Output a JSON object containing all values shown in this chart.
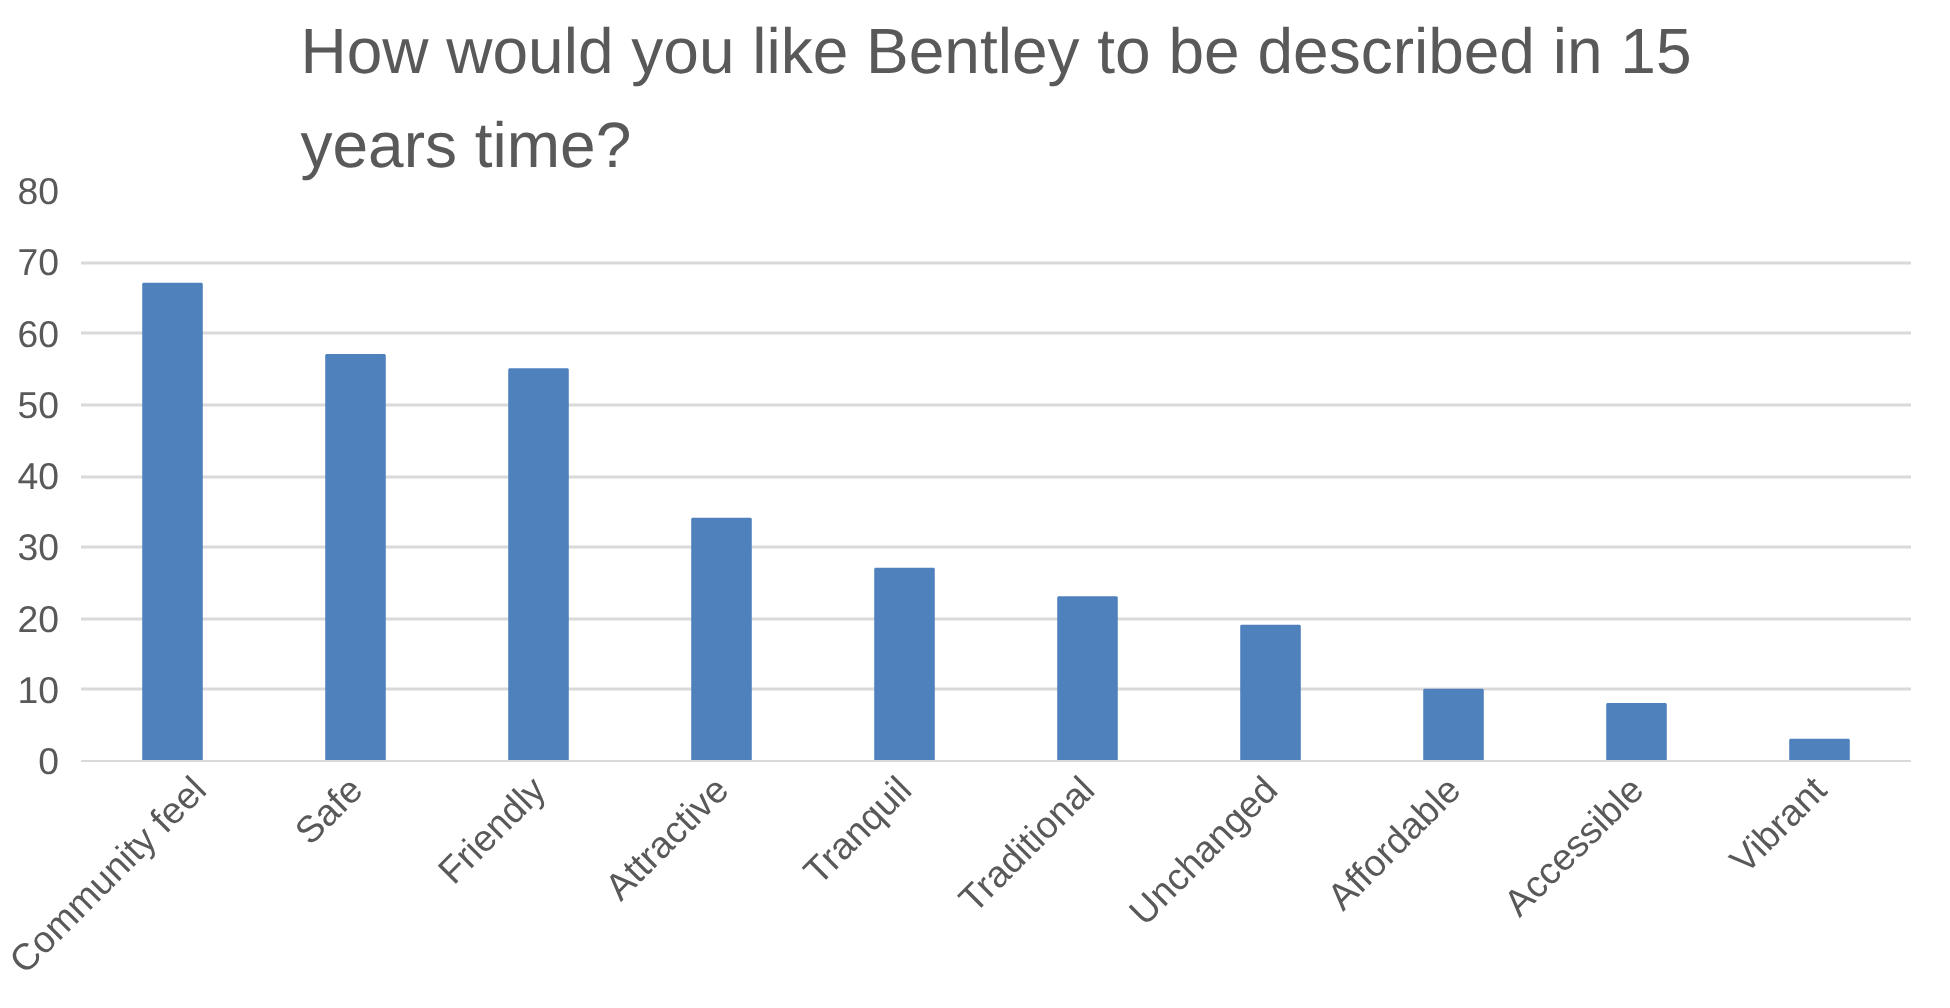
{
  "chart_data": {
    "type": "bar",
    "title": "How would you like Bentley to be described in 15 years time?",
    "categories": [
      "Community feel",
      "Safe",
      "Friendly",
      "Attractive",
      "Tranquil",
      "Traditional",
      "Unchanged",
      "Affordable",
      "Accessible",
      "Vibrant"
    ],
    "values": [
      67,
      57,
      55,
      34,
      27,
      23,
      19,
      10,
      8,
      3
    ],
    "color": "#4f81bd",
    "ylim": [
      0,
      80
    ],
    "yticks": [
      0,
      10,
      20,
      30,
      40,
      50,
      60,
      70,
      80
    ],
    "grid": "y"
  }
}
